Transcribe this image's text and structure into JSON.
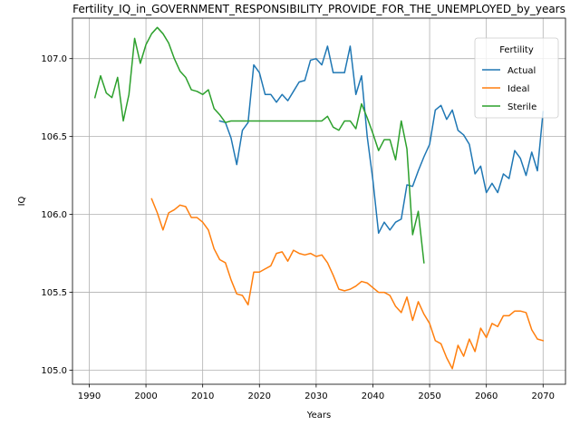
{
  "chart_data": {
    "type": "line",
    "title": "Fertility_IQ_in_GOVERNMENT_RESPONSIBILITY_PROVIDE_FOR_THE_UNEMPLOYED_by_years",
    "xlabel": "Years",
    "ylabel": "IQ",
    "xlim": [
      1987.05,
      2073.95
    ],
    "ylim": [
      104.91,
      107.26
    ],
    "xticks": [
      1990,
      2000,
      2010,
      2020,
      2030,
      2040,
      2050,
      2060,
      2070
    ],
    "yticks": [
      105.0,
      105.5,
      106.0,
      106.5,
      107.0
    ],
    "grid": true,
    "legend": {
      "title": "Fertility",
      "placement": "upper right"
    },
    "series": [
      {
        "name": "Actual",
        "color": "#1f77b4",
        "x": [
          2013,
          2014,
          2015,
          2016,
          2017,
          2018,
          2019,
          2020,
          2021,
          2022,
          2023,
          2024,
          2025,
          2026,
          2027,
          2028,
          2029,
          2030,
          2031,
          2032,
          2033,
          2034,
          2035,
          2036,
          2037,
          2038,
          2039,
          2040,
          2041,
          2042,
          2043,
          2044,
          2045,
          2046,
          2047,
          2048,
          2049,
          2050,
          2051,
          2052,
          2053,
          2054,
          2055,
          2056,
          2057,
          2058,
          2059,
          2060,
          2061,
          2062,
          2063,
          2064,
          2065,
          2066,
          2067,
          2068,
          2069,
          2070
        ],
        "y": [
          106.6,
          106.59,
          106.49,
          106.32,
          106.54,
          106.59,
          106.96,
          106.91,
          106.77,
          106.77,
          106.72,
          106.77,
          106.73,
          106.79,
          106.85,
          106.86,
          106.99,
          107.0,
          106.96,
          107.08,
          106.91,
          106.91,
          106.91,
          107.08,
          106.77,
          106.89,
          106.5,
          106.22,
          105.88,
          105.95,
          105.9,
          105.95,
          105.97,
          106.19,
          106.18,
          106.28,
          106.37,
          106.45,
          106.67,
          106.7,
          106.61,
          106.67,
          106.54,
          106.51,
          106.45,
          106.26,
          106.31,
          106.14,
          106.2,
          106.14,
          106.26,
          106.23,
          106.41,
          106.36,
          106.25,
          106.4,
          106.28,
          106.66
        ]
      },
      {
        "name": "Ideal",
        "color": "#ff7f0e",
        "x": [
          2001,
          2002,
          2003,
          2004,
          2005,
          2006,
          2007,
          2008,
          2009,
          2010,
          2011,
          2012,
          2013,
          2014,
          2015,
          2016,
          2017,
          2018,
          2019,
          2020,
          2021,
          2022,
          2023,
          2024,
          2025,
          2026,
          2027,
          2028,
          2029,
          2030,
          2031,
          2032,
          2033,
          2034,
          2035,
          2036,
          2037,
          2038,
          2039,
          2040,
          2041,
          2042,
          2043,
          2044,
          2045,
          2046,
          2047,
          2048,
          2049,
          2050,
          2051,
          2052,
          2053,
          2054,
          2055,
          2056,
          2057,
          2058,
          2059,
          2060,
          2061,
          2062,
          2063,
          2064,
          2065,
          2066,
          2067,
          2068,
          2069,
          2070
        ],
        "y": [
          106.1,
          106.01,
          105.9,
          106.01,
          106.03,
          106.06,
          106.05,
          105.98,
          105.98,
          105.95,
          105.9,
          105.78,
          105.71,
          105.69,
          105.58,
          105.49,
          105.48,
          105.42,
          105.63,
          105.63,
          105.65,
          105.67,
          105.75,
          105.76,
          105.7,
          105.77,
          105.75,
          105.74,
          105.75,
          105.73,
          105.74,
          105.69,
          105.61,
          105.52,
          105.51,
          105.52,
          105.54,
          105.57,
          105.56,
          105.53,
          105.5,
          105.5,
          105.48,
          105.41,
          105.37,
          105.47,
          105.32,
          105.44,
          105.36,
          105.3,
          105.19,
          105.17,
          105.08,
          105.01,
          105.16,
          105.09,
          105.2,
          105.12,
          105.27,
          105.21,
          105.3,
          105.28,
          105.35,
          105.35,
          105.38,
          105.38,
          105.37,
          105.26,
          105.2,
          105.19
        ]
      },
      {
        "name": "Sterile",
        "color": "#2ca02c",
        "x": [
          1991,
          1992,
          1993,
          1994,
          1995,
          1996,
          1997,
          1998,
          1999,
          2000,
          2001,
          2002,
          2003,
          2004,
          2005,
          2006,
          2007,
          2008,
          2009,
          2010,
          2011,
          2012,
          2013,
          2014,
          2015,
          2016,
          2017,
          2018,
          2019,
          2020,
          2021,
          2022,
          2023,
          2024,
          2025,
          2026,
          2027,
          2028,
          2029,
          2030,
          2031,
          2032,
          2033,
          2034,
          2035,
          2036,
          2037,
          2038,
          2039,
          2040,
          2041,
          2042,
          2043,
          2044,
          2045,
          2046,
          2047,
          2048,
          2049
        ],
        "y": [
          106.75,
          106.89,
          106.78,
          106.75,
          106.88,
          106.6,
          106.77,
          107.13,
          106.97,
          107.09,
          107.16,
          107.2,
          107.16,
          107.1,
          107.0,
          106.92,
          106.88,
          106.8,
          106.79,
          106.77,
          106.8,
          106.68,
          106.64,
          106.59,
          106.6,
          106.6,
          106.6,
          106.6,
          106.6,
          106.6,
          106.6,
          106.6,
          106.6,
          106.6,
          106.6,
          106.6,
          106.6,
          106.6,
          106.6,
          106.6,
          106.6,
          106.63,
          106.56,
          106.54,
          106.6,
          106.6,
          106.55,
          106.71,
          106.62,
          106.52,
          106.41,
          106.48,
          106.48,
          106.35,
          106.6,
          106.42,
          105.87,
          106.02,
          105.69
        ]
      }
    ]
  }
}
